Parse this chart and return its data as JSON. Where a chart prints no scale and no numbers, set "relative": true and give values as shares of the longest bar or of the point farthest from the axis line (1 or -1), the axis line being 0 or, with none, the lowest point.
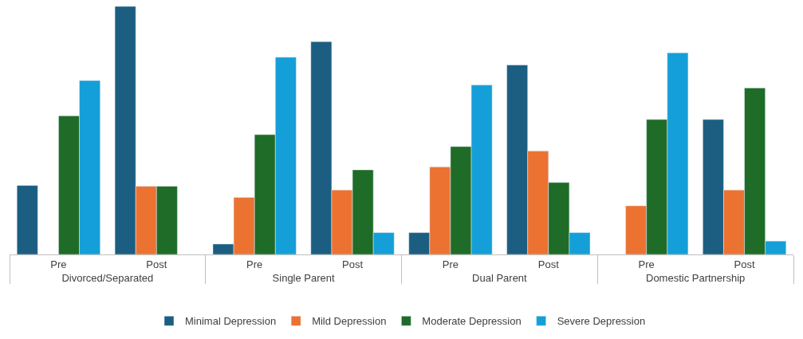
{
  "chart_data": {
    "type": "bar",
    "relative": true,
    "categories": [
      "Pre",
      "Post",
      "Pre",
      "Post",
      "Pre",
      "Post",
      "Pre",
      "Post"
    ],
    "annotations": [
      "Divorced/Separated",
      "Single Parent",
      "Dual Parent",
      "Domestic Partnership"
    ],
    "series": [
      {
        "name": "Minimal Depression",
        "color": "#1b5e81",
        "values": [
          0.278,
          1,
          0.042,
          0.858,
          0.088,
          0.764,
          null,
          0.544
        ]
      },
      {
        "name": "Mild Depression",
        "color": "#ec7232",
        "values": [
          null,
          0.275,
          0.23,
          0.26,
          0.353,
          0.417,
          0.196,
          0.26
        ]
      },
      {
        "name": "Moderate Depression",
        "color": "#1e6c27",
        "values": [
          0.559,
          0.275,
          0.483,
          0.341,
          0.435,
          0.29,
          0.544,
          0.671
        ]
      },
      {
        "name": "Severe Depression",
        "color": "#149fd8",
        "values": [
          0.701,
          null,
          0.795,
          0.088,
          0.683,
          0.088,
          0.813,
          0.054
        ]
      }
    ],
    "legend": "bottom"
  }
}
